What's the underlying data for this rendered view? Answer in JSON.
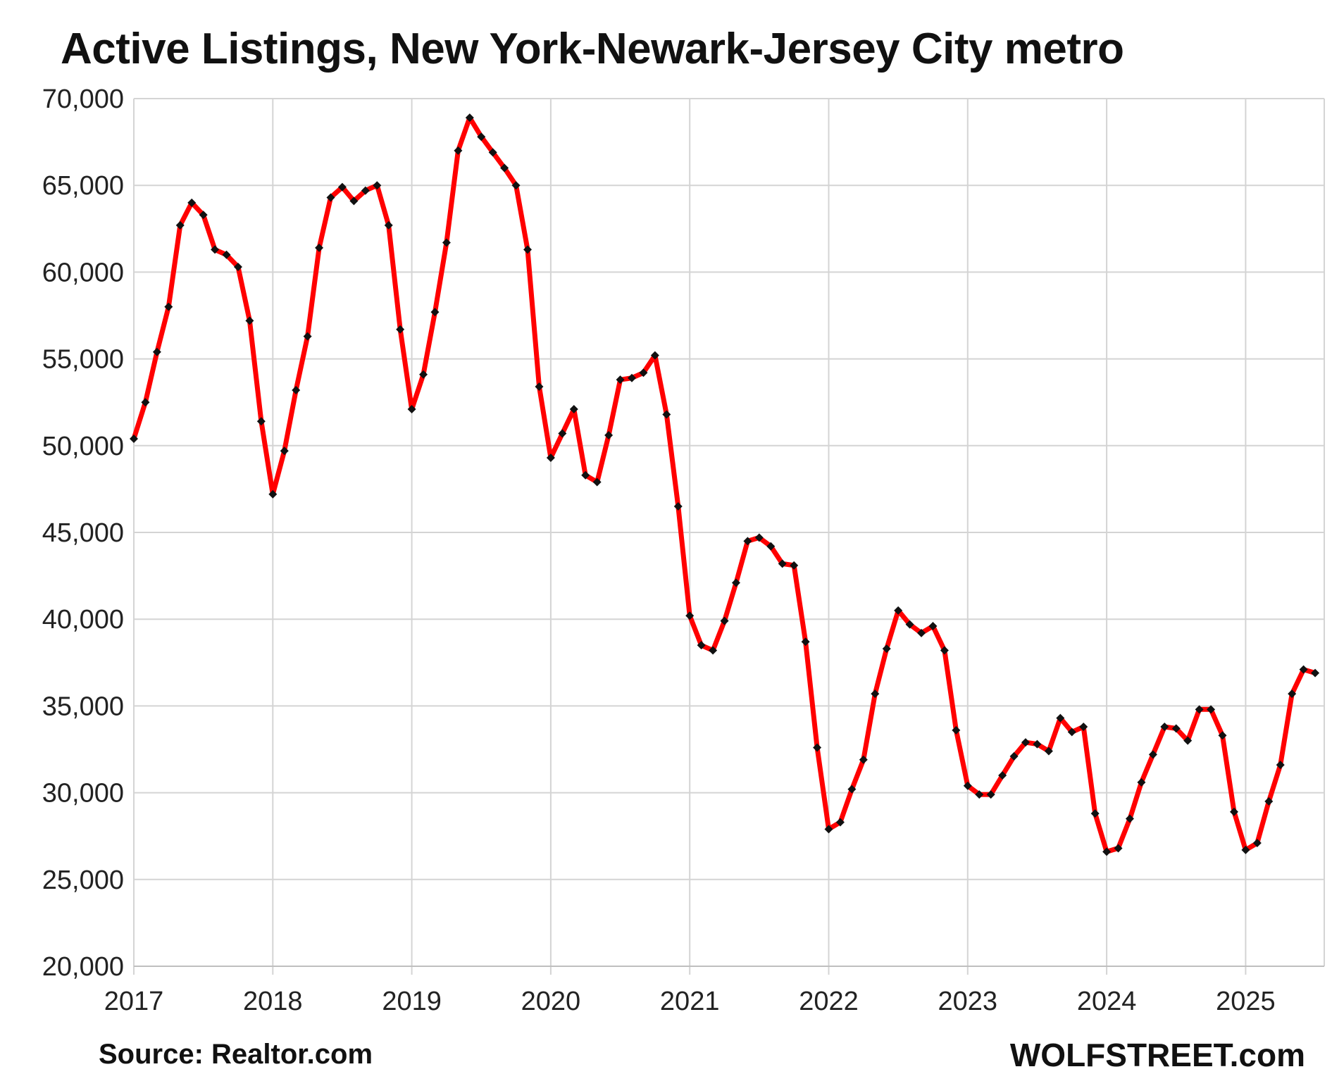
{
  "chart_data": {
    "type": "line",
    "title": "Active Listings, New York-Newark-Jersey City metro",
    "xlabel": "",
    "ylabel": "",
    "ylim": [
      20000,
      70000
    ],
    "y_ticks": [
      "20,000",
      "25,000",
      "30,000",
      "35,000",
      "40,000",
      "45,000",
      "50,000",
      "55,000",
      "60,000",
      "65,000",
      "70,000"
    ],
    "x_ticks": [
      "2017",
      "2018",
      "2019",
      "2020",
      "2021",
      "2022",
      "2023",
      "2024",
      "2025"
    ],
    "x_start": "2017-01",
    "x_end": "2025-07",
    "grid": true,
    "legend": "none",
    "line_color": "#ff0000",
    "marker_color": "#111111",
    "series": [
      {
        "x": [
          "2017-01",
          "2017-02",
          "2017-03",
          "2017-04",
          "2017-05",
          "2017-06",
          "2017-07",
          "2017-08",
          "2017-09",
          "2017-10",
          "2017-11",
          "2017-12",
          "2018-01",
          "2018-02",
          "2018-03",
          "2018-04",
          "2018-05",
          "2018-06",
          "2018-07",
          "2018-08",
          "2018-09",
          "2018-10",
          "2018-11",
          "2018-12",
          "2019-01",
          "2019-02",
          "2019-03",
          "2019-04",
          "2019-05",
          "2019-06",
          "2019-07",
          "2019-08",
          "2019-09",
          "2019-10",
          "2019-11",
          "2019-12",
          "2020-01",
          "2020-02",
          "2020-03",
          "2020-04",
          "2020-05",
          "2020-06",
          "2020-07",
          "2020-08",
          "2020-09",
          "2020-10",
          "2020-11",
          "2020-12",
          "2021-01",
          "2021-02",
          "2021-03",
          "2021-04",
          "2021-05",
          "2021-06",
          "2021-07",
          "2021-08",
          "2021-09",
          "2021-10",
          "2021-11",
          "2021-12",
          "2022-01",
          "2022-02",
          "2022-03",
          "2022-04",
          "2022-05",
          "2022-06",
          "2022-07",
          "2022-08",
          "2022-09",
          "2022-10",
          "2022-11",
          "2022-12",
          "2023-01",
          "2023-02",
          "2023-03",
          "2023-04",
          "2023-05",
          "2023-06",
          "2023-07",
          "2023-08",
          "2023-09",
          "2023-10",
          "2023-11",
          "2023-12",
          "2024-01",
          "2024-02",
          "2024-03",
          "2024-04",
          "2024-05",
          "2024-06",
          "2024-07",
          "2024-08",
          "2024-09",
          "2024-10",
          "2024-11",
          "2024-12",
          "2025-01",
          "2025-02",
          "2025-03",
          "2025-04",
          "2025-05",
          "2025-06",
          "2025-07"
        ],
        "values": [
          50400,
          52500,
          55400,
          58000,
          62700,
          64000,
          63300,
          61300,
          61000,
          60300,
          57200,
          51400,
          47200,
          49700,
          53200,
          56300,
          61400,
          64300,
          64900,
          64100,
          64700,
          65000,
          62700,
          56700,
          52100,
          54100,
          57700,
          61700,
          67000,
          68900,
          67800,
          66900,
          66000,
          65000,
          61300,
          53400,
          49300,
          50700,
          52100,
          48300,
          47900,
          50600,
          53800,
          53900,
          54200,
          55200,
          51800,
          46500,
          40200,
          38500,
          38200,
          39900,
          42100,
          44500,
          44700,
          44200,
          43200,
          43100,
          38700,
          32600,
          27900,
          28300,
          30200,
          31900,
          35700,
          38300,
          40500,
          39700,
          39200,
          39600,
          38200,
          33600,
          30400,
          29900,
          29900,
          31000,
          32100,
          32900,
          32800,
          32400,
          34300,
          33500,
          33800,
          28800,
          26600,
          26800,
          28500,
          30600,
          32200,
          33800,
          33700,
          33000,
          34800,
          34800,
          33300,
          28900,
          26700,
          27100,
          29500,
          31600,
          35700,
          37100,
          36900
        ]
      }
    ]
  },
  "footer": {
    "source": "Source: Realtor.com",
    "brand": "WOLFSTREET.com"
  }
}
